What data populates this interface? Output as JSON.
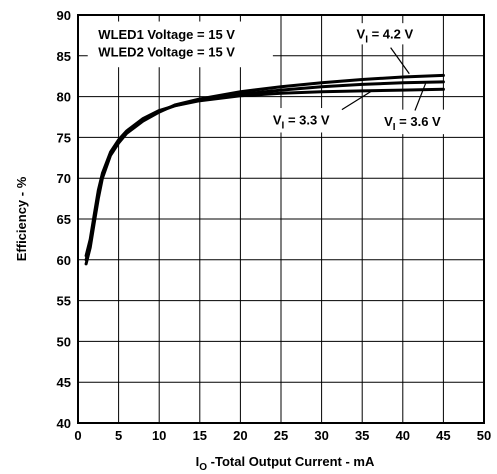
{
  "chart_data": {
    "type": "line",
    "xlabel_main": "I",
    "xlabel_sub": "O",
    "xlabel_rest": " -Total Output Current - mA",
    "ylabel": "Efficiency - %",
    "xlim": [
      0,
      50
    ],
    "ylim": [
      40,
      90
    ],
    "xticks": [
      0,
      5,
      10,
      15,
      20,
      25,
      30,
      35,
      40,
      45,
      50
    ],
    "yticks": [
      40,
      45,
      50,
      55,
      60,
      65,
      70,
      75,
      80,
      85,
      90
    ],
    "grid": true,
    "annotations": [
      {
        "text": "WLED1 Voltage = 15 V"
      },
      {
        "text": "WLED2 Voltage = 15 V"
      }
    ],
    "series": [
      {
        "name_main": "V",
        "name_sub": "I",
        "name_rest": " = 4.2 V",
        "x": [
          1.0,
          1.5,
          2.0,
          2.5,
          3.0,
          4.0,
          5.0,
          6.0,
          8.0,
          10.0,
          12.0,
          15.0,
          20.0,
          25.0,
          30.0,
          35.0,
          40.0,
          45.0
        ],
        "y": [
          59.5,
          61.5,
          64.5,
          67.5,
          70.0,
          72.8,
          74.3,
          75.5,
          77.0,
          78.1,
          79.0,
          79.7,
          80.6,
          81.2,
          81.7,
          82.1,
          82.4,
          82.6
        ]
      },
      {
        "name_main": "V",
        "name_sub": "I",
        "name_rest": " = 3.6 V",
        "x": [
          1.0,
          1.5,
          2.0,
          2.5,
          3.0,
          4.0,
          5.0,
          6.0,
          8.0,
          10.0,
          12.0,
          15.0,
          20.0,
          25.0,
          30.0,
          35.0,
          40.0,
          45.0
        ],
        "y": [
          60.0,
          62.0,
          65.0,
          68.0,
          70.3,
          73.0,
          74.5,
          75.7,
          77.2,
          78.2,
          78.9,
          79.6,
          80.3,
          80.8,
          81.2,
          81.5,
          81.7,
          81.8
        ]
      },
      {
        "name_main": "V",
        "name_sub": "I",
        "name_rest": " = 3.3 V",
        "x": [
          1.0,
          1.5,
          2.0,
          2.5,
          3.0,
          4.0,
          5.0,
          6.0,
          8.0,
          10.0,
          12.0,
          15.0,
          20.0,
          25.0,
          30.0,
          35.0,
          40.0,
          45.0
        ],
        "y": [
          60.5,
          62.5,
          65.5,
          68.5,
          70.6,
          73.2,
          74.7,
          75.8,
          77.3,
          78.3,
          78.9,
          79.5,
          80.1,
          80.4,
          80.6,
          80.7,
          80.8,
          80.9
        ]
      }
    ]
  }
}
